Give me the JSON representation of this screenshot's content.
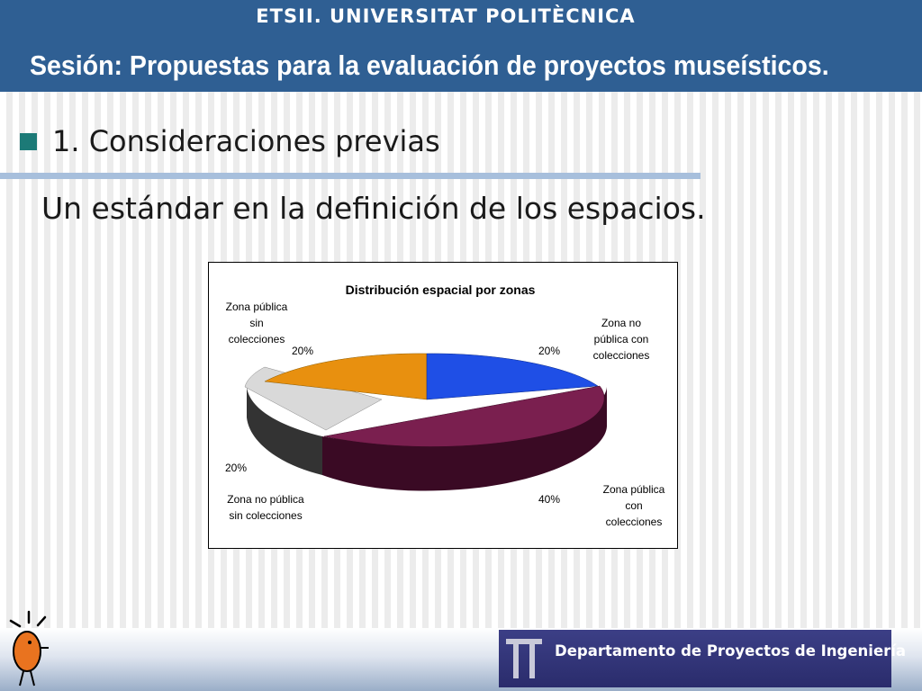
{
  "header": {
    "institution": "ETSII. UNIVERSITAT POLITÈCNICA",
    "session": "Sesión:  Propuestas para la evaluación de proyectos museísticos."
  },
  "section": {
    "title": "1. Consideraciones previas",
    "subtitle": "Un estándar en la definición de los espacios."
  },
  "chart_data": {
    "type": "pie",
    "title": "Distribución espacial por zonas",
    "style": "3d-exploded",
    "slices": [
      {
        "label": "Zona no pública con colecciones",
        "value": 20,
        "text": "20%",
        "color": "#1f4fe6"
      },
      {
        "label": "Zona pública con colecciones",
        "value": 40,
        "text": "40%",
        "color": "#7a1f4f"
      },
      {
        "label": "Zona  no pública sin colecciones",
        "value": 20,
        "text": "20%",
        "color": "#d9d9d9"
      },
      {
        "label": "Zona pública sin colecciones",
        "value": 20,
        "text": "20%",
        "color": "#e8900f"
      }
    ]
  },
  "footer": {
    "department": "Departamento de Proyectos de Ingeniería"
  },
  "icons": {
    "bullet": "square-bullet-icon",
    "mascot": "mascot-icon",
    "logo": "pi-logo-icon"
  }
}
